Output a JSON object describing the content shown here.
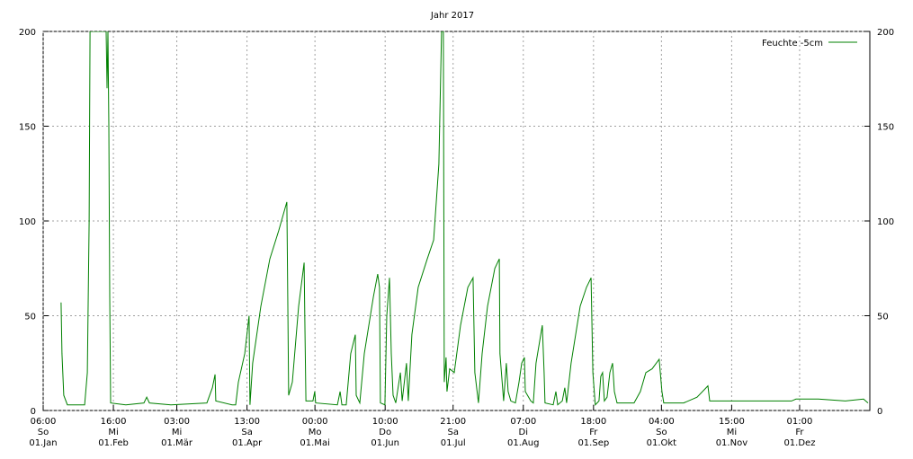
{
  "chart_data": {
    "type": "line",
    "title": "Jahr 2017",
    "xlim": [
      0,
      365
    ],
    "ylim": [
      0,
      200
    ],
    "yticks": [
      0,
      50,
      100,
      150,
      200
    ],
    "xticks": [
      {
        "value": 0,
        "label": [
          "06:00",
          "So",
          "01.Jan"
        ]
      },
      {
        "value": 31,
        "label": [
          "16:00",
          "Mi",
          "01.Feb"
        ]
      },
      {
        "value": 59,
        "label": [
          "03:00",
          "Mi",
          "01.Mär"
        ]
      },
      {
        "value": 90,
        "label": [
          "13:00",
          "Sa",
          "01.Apr"
        ]
      },
      {
        "value": 120,
        "label": [
          "00:00",
          "Mo",
          "01.Mai"
        ]
      },
      {
        "value": 151,
        "label": [
          "10:00",
          "Do",
          "01.Jun"
        ]
      },
      {
        "value": 181,
        "label": [
          "21:00",
          "Sa",
          "01.Jul"
        ]
      },
      {
        "value": 212,
        "label": [
          "07:00",
          "Di",
          "01.Aug"
        ]
      },
      {
        "value": 243,
        "label": [
          "18:00",
          "Fr",
          "01.Sep"
        ]
      },
      {
        "value": 273,
        "label": [
          "04:00",
          "So",
          "01.Okt"
        ]
      },
      {
        "value": 304,
        "label": [
          "15:00",
          "Mi",
          "01.Nov"
        ]
      },
      {
        "value": 334,
        "label": [
          "01:00",
          "Fr",
          "01.Dez"
        ]
      }
    ],
    "grid": true,
    "legend": "top-right",
    "series": [
      {
        "name": "Feuchte -5cm",
        "color": "#008000",
        "x": [
          7.9,
          8.3,
          9.1,
          10.7,
          18.3,
          19.5,
          20.3,
          20.7,
          21.4,
          27.8,
          28.2,
          28.6,
          29.0,
          29.4,
          29.8,
          36.5,
          44.5,
          45.7,
          46.9,
          56.4,
          72.3,
          74.7,
          75.9,
          76.2,
          83.4,
          85.0,
          86.2,
          89.0,
          90.9,
          91.3,
          92.5,
          96.1,
          100.1,
          104.0,
          106.4,
          107.6,
          108.0,
          108.4,
          110.0,
          112.8,
          115.2,
          115.6,
          116.0,
          119.1,
          119.9,
          120.3,
          129.9,
          131.1,
          131.9,
          133.8,
          135.8,
          137.8,
          138.2,
          139.8,
          141.8,
          145.8,
          147.7,
          148.5,
          148.9,
          150.9,
          151.7,
          152.9,
          153.7,
          154.5,
          155.7,
          157.7,
          158.5,
          160.4,
          161.2,
          162.8,
          165.6,
          169.6,
          172.4,
          174.7,
          175.9,
          176.7,
          177.1,
          177.9,
          178.3,
          179.5,
          181.5,
          184.3,
          187.5,
          189.8,
          190.6,
          192.2,
          193.8,
          196.2,
          199.4,
          201.4,
          201.7,
          203.3,
          204.5,
          205.3,
          206.5,
          208.5,
          210.1,
          211.3,
          212.5,
          212.9,
          215.3,
          216.4,
          217.6,
          220.4,
          221.2,
          221.6,
          225.2,
          226.4,
          227.2,
          229.2,
          230.3,
          231.1,
          233.1,
          237.1,
          239.9,
          241.9,
          242.7,
          243.8,
          245.4,
          246.2,
          247.0,
          247.8,
          249.0,
          250.2,
          251.4,
          252.2,
          253.4,
          260.9,
          263.7,
          266.1,
          268.9,
          272.0,
          273.2,
          274.0,
          282.8,
          288.7,
          293.5,
          294.3,
          298.6,
          330.4,
          332.4,
          342.3,
          354.2,
          362.2,
          364.2
        ],
        "values": [
          57,
          30,
          8,
          3,
          3,
          20,
          100,
          200,
          200,
          200,
          170,
          200,
          150,
          60,
          4,
          3,
          4,
          7,
          4,
          3,
          4,
          12,
          19,
          5,
          3,
          3,
          15,
          30,
          50,
          3,
          25,
          55,
          80,
          95,
          105,
          110,
          60,
          8,
          15,
          55,
          78,
          40,
          5,
          5,
          10,
          4,
          3,
          10,
          3,
          3,
          30,
          40,
          8,
          4,
          30,
          60,
          72,
          65,
          4,
          3,
          50,
          70,
          30,
          8,
          4,
          20,
          5,
          25,
          5,
          40,
          65,
          80,
          90,
          130,
          200,
          200,
          15,
          28,
          10,
          22,
          20,
          45,
          65,
          70,
          20,
          4,
          30,
          55,
          75,
          80,
          30,
          5,
          25,
          10,
          5,
          4,
          15,
          25,
          28,
          10,
          5,
          4,
          25,
          45,
          20,
          4,
          3,
          10,
          3,
          5,
          12,
          4,
          25,
          55,
          65,
          70,
          20,
          3,
          5,
          18,
          20,
          5,
          7,
          20,
          25,
          10,
          4,
          4,
          10,
          20,
          22,
          27,
          10,
          4,
          4,
          7,
          13,
          5,
          5,
          5,
          6,
          6,
          5,
          6,
          4
        ]
      }
    ]
  }
}
